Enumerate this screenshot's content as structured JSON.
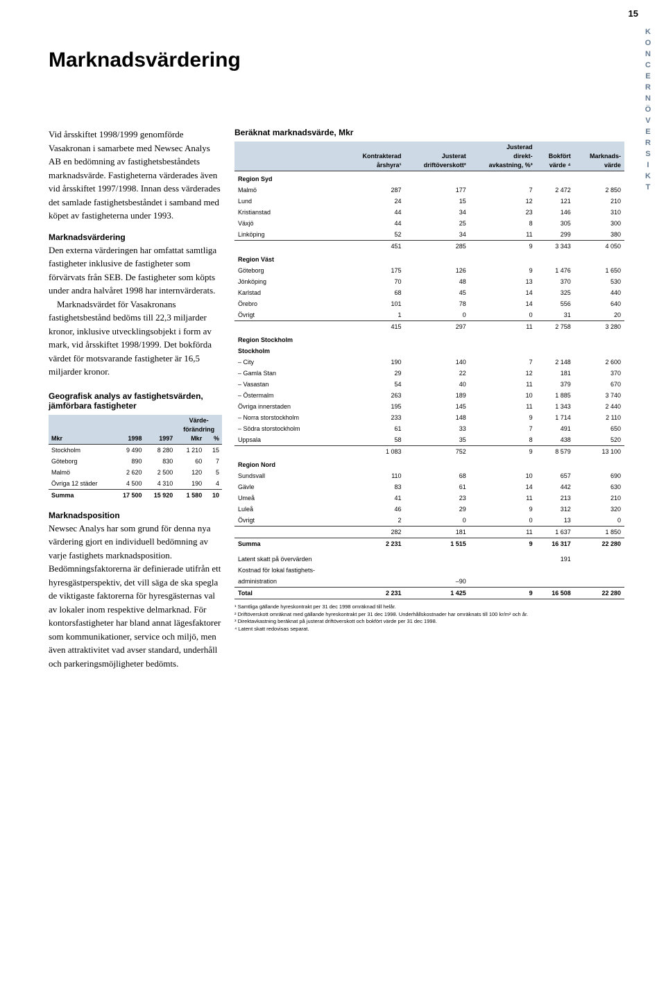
{
  "page_number": "15",
  "side_label": "KONCERNÖVERSIKT",
  "title": "Marknadsvärdering",
  "left": {
    "para1": "Vid årsskiftet 1998/1999 genomförde Vasakronan i samarbete med Newsec Analys AB en bedömning av fastighetsbeståndets marknadsvärde. Fastigheterna värderades även vid årsskiftet 1997/1998. Innan dess värderades det samlade fastighetsbeståndet i samband med köpet av fastigheterna under 1993.",
    "h2a": "Marknadsvärdering",
    "para2": "Den externa värderingen har omfattat samtliga fastigheter inklusive de fastigheter som förvärvats från SEB. De fastigheter som köpts under andra halvåret 1998 har internvärderats.",
    "para3": "Marknadsvärdet för Vasakronans fastighetsbestånd bedöms till 22,3 miljarder kronor, inklusive utvecklingsobjekt i form av mark, vid årsskiftet 1998/1999. Det bokförda värdet för motsvarande fastigheter är 16,5 miljarder kronor.",
    "small_table_caption": "Geografisk analys av fastighetsvärden, jämförbara fastigheter",
    "small_table": {
      "header_top": [
        "",
        "",
        "",
        "Värde-",
        ""
      ],
      "header_mid": [
        "",
        "",
        "",
        "förändring",
        ""
      ],
      "header": [
        "Mkr",
        "1998",
        "1997",
        "Mkr",
        "%"
      ],
      "rows": [
        [
          "Stockholm",
          "9 490",
          "8 280",
          "1 210",
          "15"
        ],
        [
          "Göteborg",
          "890",
          "830",
          "60",
          "7"
        ],
        [
          "Malmö",
          "2 620",
          "2 500",
          "120",
          "5"
        ],
        [
          "Övriga 12 städer",
          "4 500",
          "4 310",
          "190",
          "4"
        ]
      ],
      "sum": [
        "Summa",
        "17 500",
        "15 920",
        "1 580",
        "10"
      ]
    },
    "h2b": "Marknadsposition",
    "para4": "Newsec Analys har som grund för denna nya värdering gjort en individuell bedömning av varje fastighets marknadsposition. Bedömningsfaktorerna är definierade utifrån ett hyresgästperspektiv, det vill säga de ska spegla de viktigaste faktorerna för hyresgästernas val av lokaler inom respektive delmarknad. För kontorsfastigheter har bland annat lägesfaktorer som kommunikationer, service och miljö, men även attraktivitet vad avser standard, underhåll och parkeringsmöjligheter bedömts."
  },
  "big_caption": "Beräknat marknadsvärde, Mkr",
  "big_header_top": [
    "",
    "",
    "",
    "Justerad",
    "",
    ""
  ],
  "big_header_mid": [
    "",
    "Kontrakterad",
    "Justerat",
    "direkt-",
    "Bokfört",
    "Marknads-"
  ],
  "big_header": [
    "",
    "årshyra¹",
    "driftöverskott²",
    "avkastning, %³",
    "värde ⁴",
    "värde"
  ],
  "regions": [
    {
      "name": "Region Syd",
      "rows": [
        [
          "Malmö",
          "287",
          "177",
          "7",
          "2 472",
          "2 850"
        ],
        [
          "Lund",
          "24",
          "15",
          "12",
          "121",
          "210"
        ],
        [
          "Kristianstad",
          "44",
          "34",
          "23",
          "146",
          "310"
        ],
        [
          "Växjö",
          "44",
          "25",
          "8",
          "305",
          "300"
        ],
        [
          "Linköping",
          "52",
          "34",
          "11",
          "299",
          "380"
        ]
      ],
      "sum": [
        "",
        "451",
        "285",
        "9",
        "3 343",
        "4 050"
      ]
    },
    {
      "name": "Region Väst",
      "rows": [
        [
          "Göteborg",
          "175",
          "126",
          "9",
          "1 476",
          "1 650"
        ],
        [
          "Jönköping",
          "70",
          "48",
          "13",
          "370",
          "530"
        ],
        [
          "Karlstad",
          "68",
          "45",
          "14",
          "325",
          "440"
        ],
        [
          "Örebro",
          "101",
          "78",
          "14",
          "556",
          "640"
        ],
        [
          "Övrigt",
          "1",
          "0",
          "0",
          "31",
          "20"
        ]
      ],
      "sum": [
        "",
        "415",
        "297",
        "11",
        "2 758",
        "3 280"
      ]
    },
    {
      "name": "Region Stockholm",
      "subhead": "Stockholm",
      "rows": [
        [
          "– City",
          "190",
          "140",
          "7",
          "2 148",
          "2 600"
        ],
        [
          "– Gamla Stan",
          "29",
          "22",
          "12",
          "181",
          "370"
        ],
        [
          "– Vasastan",
          "54",
          "40",
          "11",
          "379",
          "670"
        ],
        [
          "– Östermalm",
          "263",
          "189",
          "10",
          "1 885",
          "3 740"
        ],
        [
          "Övriga innerstaden",
          "195",
          "145",
          "11",
          "1 343",
          "2 440"
        ],
        [
          "– Norra storstockholm",
          "233",
          "148",
          "9",
          "1 714",
          "2 110"
        ],
        [
          "– Södra storstockholm",
          "61",
          "33",
          "7",
          "491",
          "650"
        ],
        [
          "Uppsala",
          "58",
          "35",
          "8",
          "438",
          "520"
        ]
      ],
      "sum": [
        "",
        "1 083",
        "752",
        "9",
        "8 579",
        "13 100"
      ]
    },
    {
      "name": "Region Nord",
      "rows": [
        [
          "Sundsvall",
          "110",
          "68",
          "10",
          "657",
          "690"
        ],
        [
          "Gävle",
          "83",
          "61",
          "14",
          "442",
          "630"
        ],
        [
          "Umeå",
          "41",
          "23",
          "11",
          "213",
          "210"
        ],
        [
          "Luleå",
          "46",
          "29",
          "9",
          "312",
          "320"
        ],
        [
          "Övrigt",
          "2",
          "0",
          "0",
          "13",
          "0"
        ]
      ],
      "sum": [
        "",
        "282",
        "181",
        "11",
        "1 637",
        "1 850"
      ]
    }
  ],
  "grand_sum": [
    "Summa",
    "2 231",
    "1 515",
    "9",
    "16 317",
    "22 280"
  ],
  "extras": [
    [
      "Latent skatt på övervärden",
      "",
      "",
      "",
      "191",
      ""
    ],
    [
      "Kostnad för lokal fastighets-",
      "",
      "",
      "",
      "",
      ""
    ],
    [
      "administration",
      "",
      "–90",
      "",
      "",
      ""
    ]
  ],
  "total": [
    "Total",
    "2 231",
    "1 425",
    "9",
    "16 508",
    "22 280"
  ],
  "footnotes": [
    "¹ Samtliga gällande hyreskontrakt per 31 dec 1998 omräknad till helår.",
    "² Driftöverskott omräknat med gällande hyreskontrakt per 31 dec 1998. Underhållskostnader har omräknats till 100 kr/m² och år.",
    "³ Direktavkastning beräknat på justerat driftöverskott och bokfört värde per 31 dec 1998.",
    "⁴ Latent skatt redovisas separat."
  ],
  "colors": {
    "header_bg": "#cdd9e4",
    "side_label": "#647a91"
  }
}
